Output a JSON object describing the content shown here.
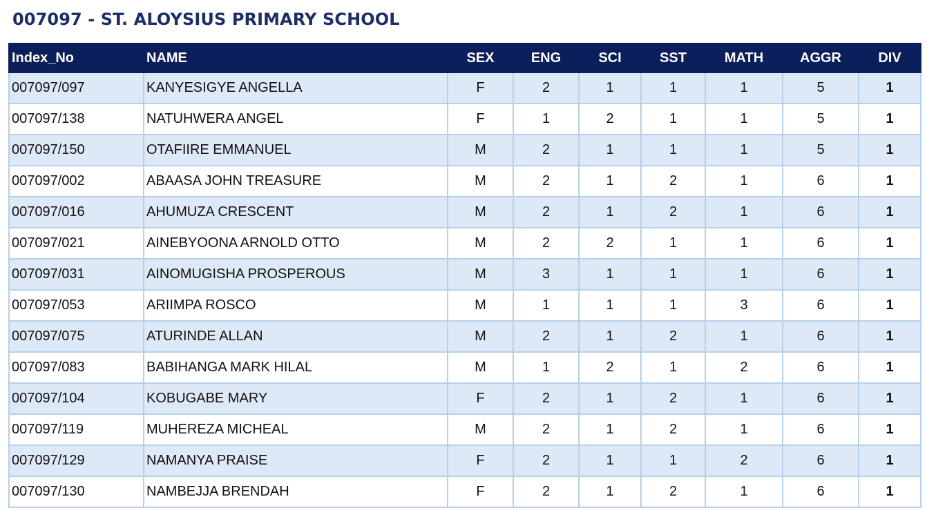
{
  "title": "007097 - ST. ALOYSIUS PRIMARY SCHOOL",
  "columns": [
    "Index_No",
    "NAME",
    "SEX",
    "ENG",
    "SCI",
    "SST",
    "MATH",
    "AGGR",
    "DIV"
  ],
  "rows": [
    [
      "007097/097",
      "KANYESIGYE ANGELLA",
      "F",
      "2",
      "1",
      "1",
      "1",
      "5",
      "1"
    ],
    [
      "007097/138",
      "NATUHWERA ANGEL",
      "F",
      "1",
      "2",
      "1",
      "1",
      "5",
      "1"
    ],
    [
      "007097/150",
      "OTAFIIRE EMMANUEL",
      "M",
      "2",
      "1",
      "1",
      "1",
      "5",
      "1"
    ],
    [
      "007097/002",
      "ABAASA JOHN TREASURE",
      "M",
      "2",
      "1",
      "2",
      "1",
      "6",
      "1"
    ],
    [
      "007097/016",
      "AHUMUZA CRESCENT",
      "M",
      "2",
      "1",
      "2",
      "1",
      "6",
      "1"
    ],
    [
      "007097/021",
      "AINEBYOONA ARNOLD OTTO",
      "M",
      "2",
      "2",
      "1",
      "1",
      "6",
      "1"
    ],
    [
      "007097/031",
      "AINOMUGISHA PROSPEROUS",
      "M",
      "3",
      "1",
      "1",
      "1",
      "6",
      "1"
    ],
    [
      "007097/053",
      "ARIIMPA ROSCO",
      "M",
      "1",
      "1",
      "1",
      "3",
      "6",
      "1"
    ],
    [
      "007097/075",
      "ATURINDE ALLAN",
      "M",
      "2",
      "1",
      "2",
      "1",
      "6",
      "1"
    ],
    [
      "007097/083",
      "BABIHANGA MARK HILAL",
      "M",
      "1",
      "2",
      "1",
      "2",
      "6",
      "1"
    ],
    [
      "007097/104",
      "KOBUGABE MARY",
      "F",
      "2",
      "1",
      "2",
      "1",
      "6",
      "1"
    ],
    [
      "007097/119",
      "MUHEREZA MICHEAL",
      "M",
      "2",
      "1",
      "2",
      "1",
      "6",
      "1"
    ],
    [
      "007097/129",
      "NAMANYA PRAISE",
      "F",
      "2",
      "1",
      "1",
      "2",
      "6",
      "1"
    ],
    [
      "007097/130",
      "NAMBEJJA BRENDAH",
      "F",
      "2",
      "1",
      "2",
      "1",
      "6",
      "1"
    ]
  ]
}
